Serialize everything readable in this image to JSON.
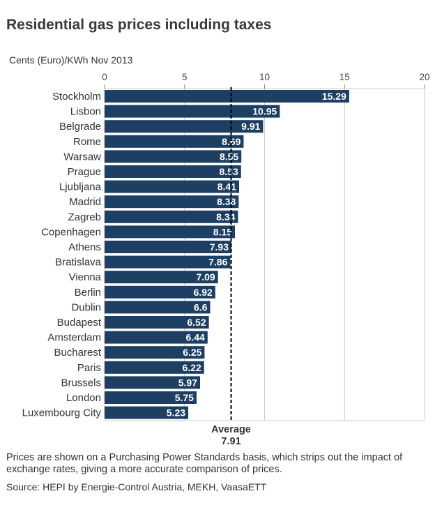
{
  "chart_data": {
    "type": "bar",
    "orientation": "horizontal",
    "title": "Residential gas prices including taxes",
    "unit_label": "Cents (Euro)/KWh Nov 2013",
    "xlim": [
      0,
      20
    ],
    "x_ticks": [
      0,
      5,
      10,
      15,
      20
    ],
    "x_tick_labels": [
      "0",
      "5",
      "10",
      "15",
      "20"
    ],
    "grid": true,
    "categories": [
      "Stockholm",
      "Lisbon",
      "Belgrade",
      "Rome",
      "Warsaw",
      "Prague",
      "Ljubljana",
      "Madrid",
      "Zagreb",
      "Copenhagen",
      "Athens",
      "Bratislava",
      "Vienna",
      "Berlin",
      "Dublin",
      "Budapest",
      "Amsterdam",
      "Bucharest",
      "Paris",
      "Brussels",
      "London",
      "Luxembourg City"
    ],
    "values": [
      15.29,
      10.95,
      9.91,
      8.69,
      8.55,
      8.53,
      8.41,
      8.38,
      8.34,
      8.15,
      7.93,
      7.86,
      7.09,
      6.92,
      6.6,
      6.52,
      6.44,
      6.25,
      6.22,
      5.97,
      5.75,
      5.23
    ],
    "value_labels": [
      "15.29",
      "10.95",
      "9.91",
      "8.69",
      "8.55",
      "8.53",
      "8.41",
      "8.38",
      "8.34",
      "8.15",
      "7.93",
      "7.86",
      "7.09",
      "6.92",
      "6.6",
      "6.52",
      "6.44",
      "6.25",
      "6.22",
      "5.97",
      "5.75",
      "5.23"
    ],
    "average": {
      "label": "Average",
      "value": 7.91,
      "value_label": "7.91"
    },
    "colors": {
      "bar": "#1c3f63",
      "grid": "#cccccc",
      "axis": "#888888"
    }
  },
  "footnote": "Prices are shown on a Purchasing Power Standards basis, which strips out the impact of exchange rates, giving a more accurate comparison of prices.",
  "source": "Source: HEPI by Energie-Control Austria, MEKH, VaasaETT"
}
